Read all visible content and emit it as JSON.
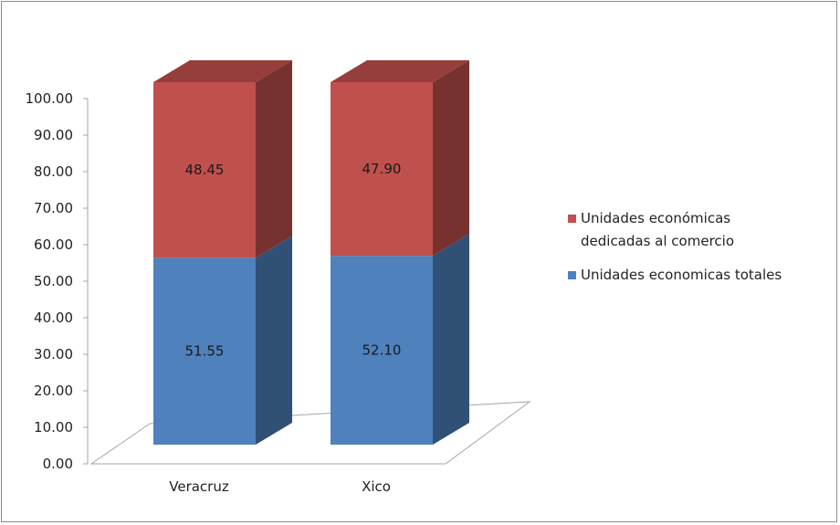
{
  "chart_data": {
    "type": "bar",
    "stacked": true,
    "three_d": true,
    "categories": [
      "Veracruz",
      "Xico"
    ],
    "series": [
      {
        "name": "Unidades economicas totales",
        "values": [
          51.55,
          52.1
        ],
        "color": "#4f81bd"
      },
      {
        "name": "Unidades económicas dedicadas al comercio",
        "values": [
          48.45,
          47.9
        ],
        "color": "#c0504d"
      }
    ],
    "data_labels": [
      [
        "51.55",
        "52.10"
      ],
      [
        "48.45",
        "47.90"
      ]
    ],
    "y_ticks": [
      "0.00",
      "10.00",
      "20.00",
      "30.00",
      "40.00",
      "50.00",
      "60.00",
      "70.00",
      "80.00",
      "90.00",
      "100.00"
    ],
    "ylim": [
      0,
      100
    ],
    "grid": false,
    "legend_position": "right",
    "legend": [
      {
        "lines": [
          "Unidades económicas",
          "dedicadas al comercio"
        ],
        "color": "#c0504d"
      },
      {
        "lines": [
          "Unidades economicas totales"
        ],
        "color": "#4f81bd"
      }
    ]
  }
}
